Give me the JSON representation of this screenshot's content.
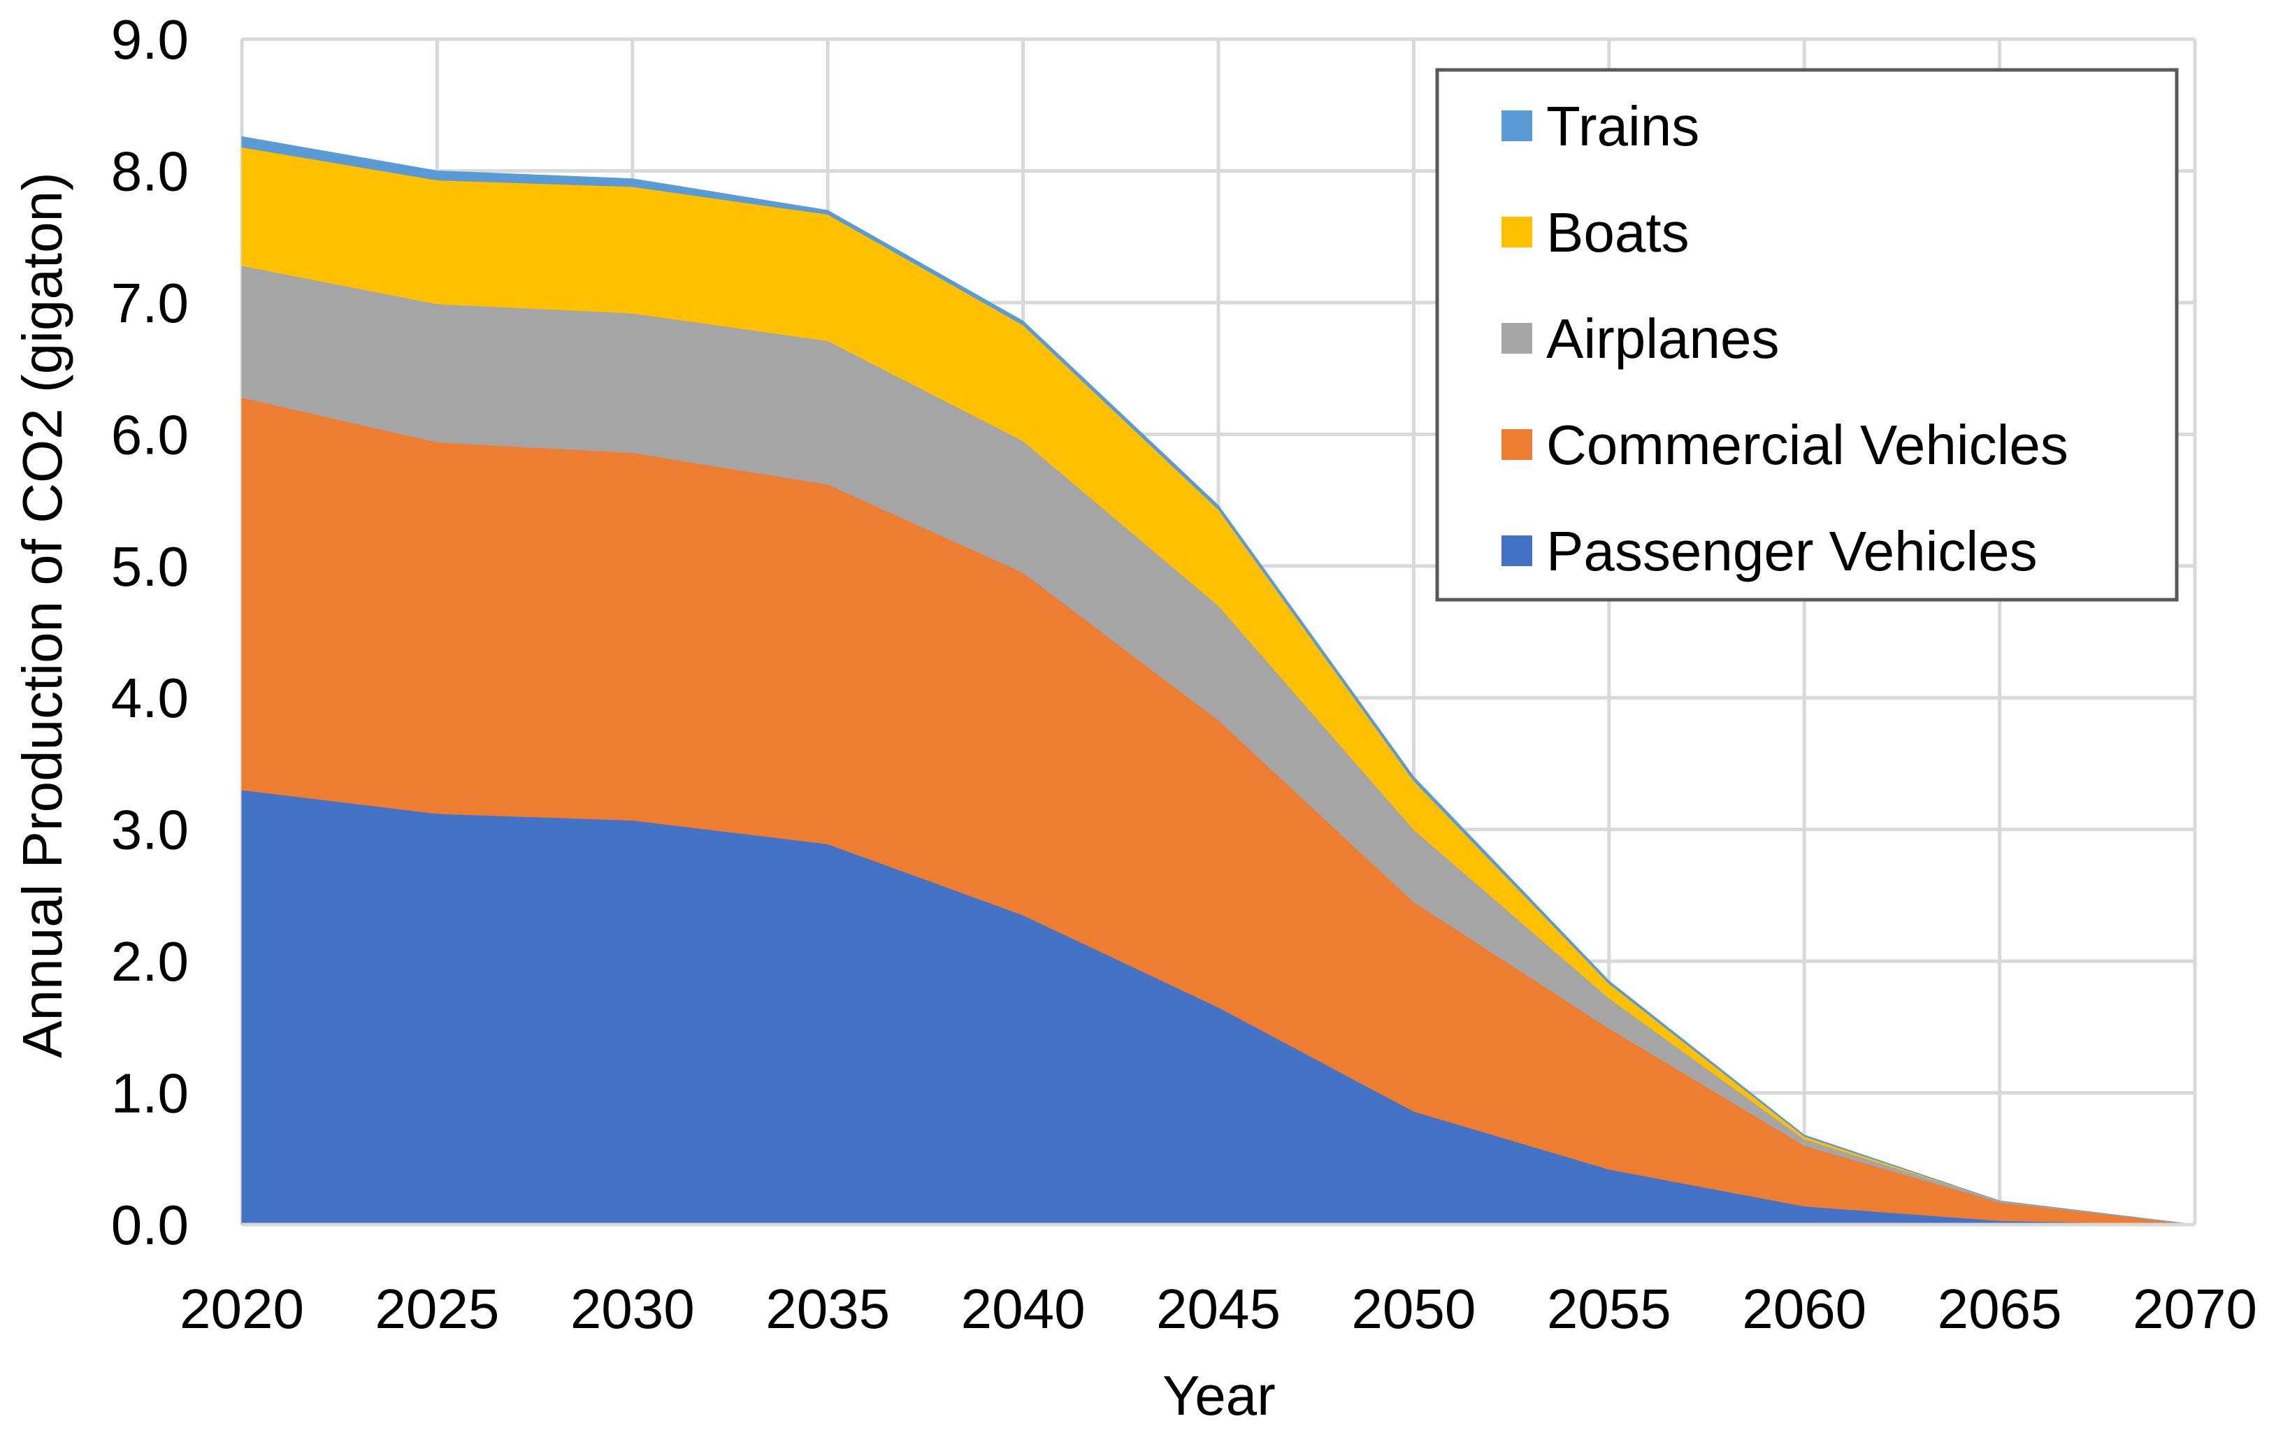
{
  "chart_data": {
    "type": "area",
    "stacked": true,
    "title": "",
    "xlabel": "Year",
    "ylabel": "Annual Production of CO2 (gigaton)",
    "x": [
      2020,
      2025,
      2030,
      2035,
      2040,
      2045,
      2050,
      2055,
      2060,
      2065,
      2070
    ],
    "xlim": [
      2020,
      2070
    ],
    "ylim": [
      0,
      9
    ],
    "x_ticks": [
      "2020",
      "2025",
      "2030",
      "2035",
      "2040",
      "2045",
      "2050",
      "2055",
      "2060",
      "2065",
      "2070"
    ],
    "y_ticks": [
      "0.0",
      "1.0",
      "2.0",
      "3.0",
      "4.0",
      "5.0",
      "6.0",
      "7.0",
      "8.0",
      "9.0"
    ],
    "grid": true,
    "legend_position": "top-right",
    "series": [
      {
        "name": "Passenger Vehicles",
        "color": "#4472C4",
        "values": [
          3.3,
          3.12,
          3.07,
          2.89,
          2.35,
          1.65,
          0.86,
          0.42,
          0.14,
          0.03,
          0.0
        ]
      },
      {
        "name": "Commercial Vehicles",
        "color": "#ED7D31",
        "values": [
          2.98,
          2.82,
          2.79,
          2.73,
          2.6,
          2.18,
          1.59,
          1.07,
          0.46,
          0.14,
          0.0
        ]
      },
      {
        "name": "Airplanes",
        "color": "#A5A5A5",
        "values": [
          1.0,
          1.05,
          1.06,
          1.09,
          1.0,
          0.87,
          0.55,
          0.23,
          0.05,
          0.01,
          0.0
        ]
      },
      {
        "name": "Boats",
        "color": "#FFC000",
        "values": [
          0.9,
          0.94,
          0.96,
          0.96,
          0.88,
          0.73,
          0.37,
          0.11,
          0.02,
          0.0,
          0.0
        ]
      },
      {
        "name": "Trains",
        "color": "#5B9BD5",
        "values": [
          0.08,
          0.07,
          0.06,
          0.03,
          0.03,
          0.03,
          0.03,
          0.02,
          0.01,
          0.0,
          0.0
        ]
      }
    ],
    "legend_order": [
      "Trains",
      "Boats",
      "Airplanes",
      "Commercial Vehicles",
      "Passenger Vehicles"
    ]
  }
}
